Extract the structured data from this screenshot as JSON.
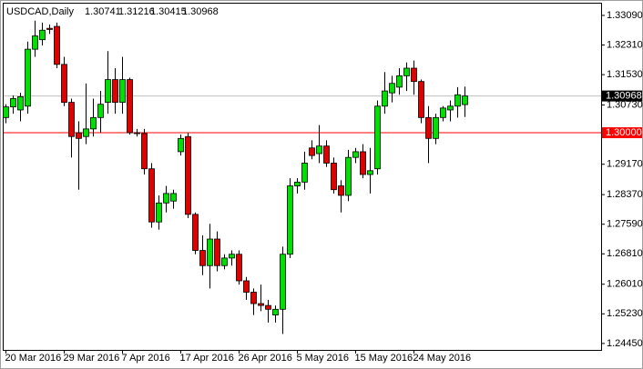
{
  "chart_data": {
    "type": "candlestick",
    "title": "USDCAD,Daily",
    "categories": [
      "20 Mar 2016",
      null,
      null,
      null,
      null,
      null,
      null,
      null,
      "29 Mar 2016",
      null,
      null,
      null,
      null,
      null,
      null,
      null,
      "7 Apr 2016",
      null,
      null,
      null,
      null,
      null,
      null,
      null,
      "17 Apr 2016",
      null,
      null,
      null,
      null,
      null,
      null,
      null,
      "26 Apr 2016",
      null,
      null,
      null,
      null,
      null,
      null,
      null,
      "5 May 2016",
      null,
      null,
      null,
      null,
      null,
      null,
      null,
      "15 May 2016",
      null,
      null,
      null,
      null,
      null,
      null,
      null,
      "24 May 2016",
      null,
      null,
      null,
      null,
      null,
      null,
      null
    ],
    "open": [
      1.304,
      1.3068,
      1.306,
      1.307,
      1.322,
      1.3245,
      1.3275,
      1.328,
      1.318,
      1.308,
      1.3,
      1.299,
      1.301,
      1.304,
      1.308,
      1.314,
      1.308,
      1.314,
      1.3,
      1.2998,
      1.2905,
      1.2765,
      1.2815,
      1.282,
      1.295,
      1.299,
      1.2785,
      1.269,
      1.265,
      1.272,
      1.265,
      1.267,
      1.268,
      1.261,
      1.258,
      1.255,
      1.2545,
      1.252,
      1.2535,
      1.268,
      1.286,
      1.287,
      1.296,
      1.2945,
      1.2965,
      1.292,
      1.286,
      1.2835,
      1.2935,
      1.295,
      1.289,
      1.2905,
      1.307,
      1.3105,
      1.312,
      1.315,
      1.317,
      1.3135,
      1.304,
      1.2985,
      1.304,
      1.306,
      1.307,
      1.30741
    ],
    "high": [
      1.3075,
      1.3098,
      1.3105,
      1.324,
      1.3295,
      1.329,
      1.3285,
      1.329,
      1.32,
      1.309,
      1.303,
      1.313,
      1.309,
      1.311,
      1.3215,
      1.317,
      1.32,
      1.3145,
      1.301,
      1.301,
      1.292,
      1.2835,
      1.286,
      1.285,
      1.2995,
      1.3,
      1.279,
      1.273,
      1.276,
      1.274,
      1.268,
      1.269,
      1.269,
      1.262,
      1.259,
      1.26,
      1.256,
      1.2545,
      1.27,
      1.288,
      1.288,
      1.295,
      1.298,
      1.302,
      1.298,
      1.2935,
      1.2875,
      1.2955,
      1.296,
      1.297,
      1.296,
      1.3085,
      1.316,
      1.315,
      1.317,
      1.3185,
      1.319,
      1.314,
      1.307,
      1.305,
      1.307,
      1.3085,
      1.312,
      1.31216
    ],
    "low": [
      1.3025,
      1.305,
      1.303,
      1.305,
      1.32,
      1.323,
      1.326,
      1.317,
      1.307,
      1.2935,
      1.285,
      1.297,
      1.299,
      1.3,
      1.305,
      1.305,
      1.305,
      1.2995,
      1.299,
      1.289,
      1.275,
      1.2745,
      1.279,
      1.28,
      1.294,
      1.2775,
      1.268,
      1.2625,
      1.259,
      1.2635,
      1.264,
      1.265,
      1.26,
      1.256,
      1.252,
      1.253,
      1.25,
      1.25,
      1.247,
      1.267,
      1.284,
      1.285,
      1.293,
      1.292,
      1.291,
      1.284,
      1.279,
      1.282,
      1.292,
      1.288,
      1.284,
      1.289,
      1.305,
      1.308,
      1.31,
      1.311,
      1.31,
      1.3025,
      1.292,
      1.297,
      1.303,
      1.303,
      1.304,
      1.30415
    ],
    "close": [
      1.3068,
      1.309,
      1.3095,
      1.322,
      1.3255,
      1.327,
      1.3272,
      1.318,
      1.308,
      1.299,
      1.2985,
      1.301,
      1.304,
      1.3075,
      1.314,
      1.308,
      1.314,
      1.3,
      1.2998,
      1.2905,
      1.2765,
      1.2815,
      1.284,
      1.284,
      1.2985,
      1.2785,
      1.269,
      1.265,
      1.272,
      1.265,
      1.267,
      1.268,
      1.261,
      1.258,
      1.255,
      1.2545,
      1.2535,
      1.2535,
      1.268,
      1.286,
      1.287,
      1.292,
      1.294,
      1.2965,
      1.292,
      1.285,
      1.2835,
      1.2935,
      1.295,
      1.289,
      1.29,
      1.307,
      1.311,
      1.313,
      1.315,
      1.317,
      1.3135,
      1.304,
      1.2985,
      1.304,
      1.3065,
      1.307,
      1.31,
      1.30968
    ],
    "up_color": "#00e000",
    "down_color": "#e00000",
    "ylim": [
      1.2428,
      1.334
    ],
    "yticks": [
      {
        "value": 1.3309,
        "label": "1.33090"
      },
      {
        "value": 1.3231,
        "label": "1.32310"
      },
      {
        "value": 1.3153,
        "label": "1.31530"
      },
      {
        "value": 1.3073,
        "label": "1.30730"
      },
      {
        "value": 1.2917,
        "label": "1.29170"
      },
      {
        "value": 1.2837,
        "label": "1.28370"
      },
      {
        "value": 1.2759,
        "label": "1.27590"
      },
      {
        "value": 1.2681,
        "label": "1.26810"
      },
      {
        "value": 1.2601,
        "label": "1.26010"
      },
      {
        "value": 1.2523,
        "label": "1.25230"
      },
      {
        "value": 1.2445,
        "label": "1.24450"
      }
    ],
    "hline": {
      "value": 1.3,
      "label": "1.30000",
      "color": "#ff0000"
    },
    "grid": false
  }
}
